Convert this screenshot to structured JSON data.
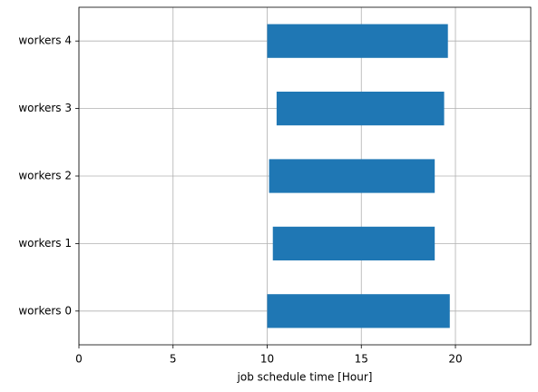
{
  "chart_data": {
    "type": "gantt",
    "x_label": "job schedule time [Hour]",
    "categories": [
      "workers 0",
      "workers 1",
      "workers 2",
      "workers 3",
      "workers 4"
    ],
    "start": [
      10.0,
      10.3,
      10.1,
      10.5,
      10.0
    ],
    "end": [
      19.7,
      18.9,
      18.9,
      19.4,
      19.6
    ],
    "color": "#1f77b4",
    "xlim": [
      0,
      24
    ],
    "xticks": [
      0,
      5,
      10,
      15,
      20
    ],
    "grid": true
  }
}
